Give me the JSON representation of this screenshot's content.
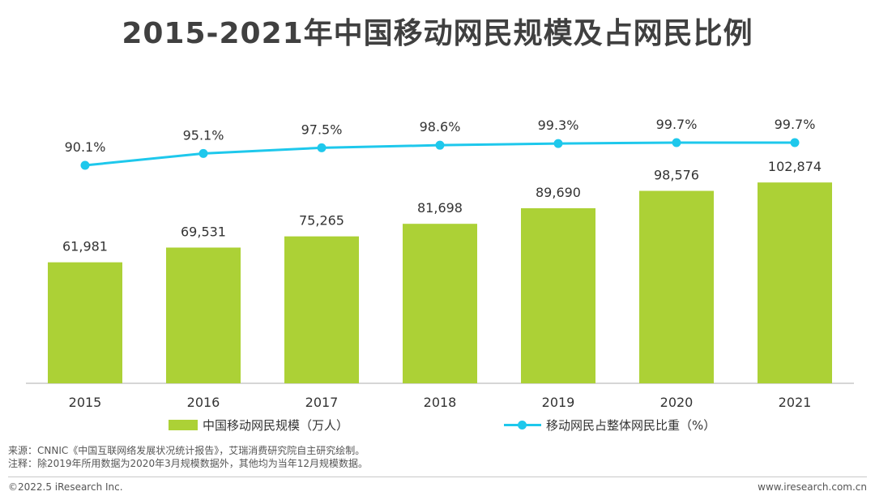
{
  "title": "2015-2021年中国移动网民规模及占网民比例",
  "colors": {
    "bar": "#acd136",
    "line": "#1ec8ec",
    "axis": "#c8c8c8",
    "text": "#333333"
  },
  "chart_data": {
    "type": "bar",
    "categories": [
      "2015",
      "2016",
      "2017",
      "2018",
      "2019",
      "2020",
      "2021"
    ],
    "series": [
      {
        "name": "中国移动网民规模（万人）",
        "type": "bar",
        "values": [
          61981,
          69531,
          75265,
          81698,
          89690,
          98576,
          102874
        ],
        "labels": [
          "61,981",
          "69,531",
          "75,265",
          "81,698",
          "89,690",
          "98,576",
          "102,874"
        ]
      },
      {
        "name": "移动网民占整体网民比重（%）",
        "type": "line",
        "values": [
          90.1,
          95.1,
          97.5,
          98.6,
          99.3,
          99.7,
          99.7
        ],
        "labels": [
          "90.1%",
          "95.1%",
          "97.5%",
          "98.6%",
          "99.3%",
          "99.7%",
          "99.7%"
        ]
      }
    ],
    "legend_position": "bottom"
  },
  "notes": {
    "source": "来源：CNNIC《中国互联网络发展状况统计报告》，艾瑞消费研究院自主研究绘制。",
    "remark": "注释：除2019年所用数据为2020年3月规模数据外，其他均为当年12月规模数据。"
  },
  "footer": {
    "copyright": "©2022.5 iResearch Inc.",
    "website": "www.iresearch.com.cn"
  }
}
